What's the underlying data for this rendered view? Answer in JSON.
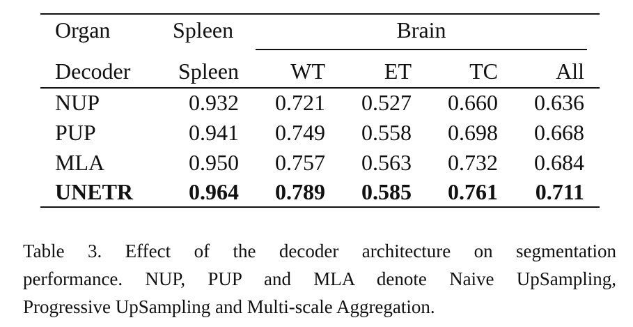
{
  "table": {
    "header_row1": {
      "organ": "Organ",
      "spleen": "Spleen",
      "brain": "Brain"
    },
    "header_row2": [
      "Decoder",
      "Spleen",
      "WT",
      "ET",
      "TC",
      "All"
    ],
    "rows": [
      {
        "decoder": "NUP",
        "values": [
          "0.932",
          "0.721",
          "0.527",
          "0.660",
          "0.636"
        ],
        "bold": false
      },
      {
        "decoder": "PUP",
        "values": [
          "0.941",
          "0.749",
          "0.558",
          "0.698",
          "0.668"
        ],
        "bold": false
      },
      {
        "decoder": "MLA",
        "values": [
          "0.950",
          "0.757",
          "0.563",
          "0.732",
          "0.684"
        ],
        "bold": false
      },
      {
        "decoder": "UNETR",
        "values": [
          "0.964",
          "0.789",
          "0.585",
          "0.761",
          "0.711"
        ],
        "bold": true
      }
    ]
  },
  "caption": {
    "line1": "Table 3. Effect of the decoder architecture on segmentation",
    "line2": "performance.  NUP, PUP and MLA denote Naive UpSampling,",
    "line3": "Progressive UpSampling and Multi-scale Aggregation."
  }
}
